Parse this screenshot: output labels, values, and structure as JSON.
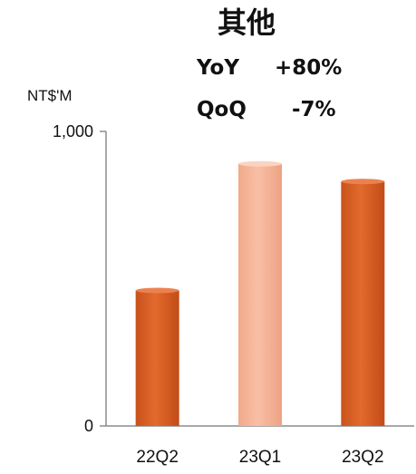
{
  "chart_data": {
    "type": "bar",
    "title": "其他",
    "subtitle_lines": [
      {
        "label": "YoY",
        "value": "+80%"
      },
      {
        "label": "QoQ",
        "value": "-7%"
      }
    ],
    "ylabel": "NT$'M",
    "ylim": [
      0,
      1000
    ],
    "yticks": [
      0,
      1000
    ],
    "ytick_labels": [
      "0",
      "1,000"
    ],
    "categories": [
      "22Q2",
      "23Q1",
      "23Q2"
    ],
    "values": [
      460,
      890,
      830
    ],
    "bar_colors": [
      "#E0672A",
      "#F6B69A",
      "#E0672A"
    ],
    "grid": false,
    "legend": "none"
  }
}
